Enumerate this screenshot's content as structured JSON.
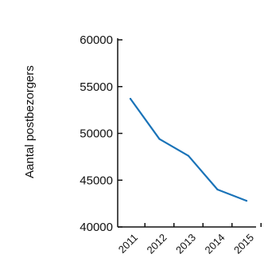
{
  "chart_data": {
    "type": "line",
    "title": "",
    "xlabel": "",
    "ylabel": "Aantal postbezorgers",
    "categories": [
      "2011",
      "2012",
      "2013",
      "2014",
      "2015"
    ],
    "series": [
      {
        "values": [
          53700,
          49400,
          47600,
          44000,
          42800
        ],
        "color": "#1a73b8"
      }
    ],
    "ylim": [
      40000,
      60000
    ],
    "yticks": [
      40000,
      45000,
      50000,
      55000,
      60000
    ],
    "ytick_labels": [
      "40000",
      "45000",
      "50000",
      "55000",
      "60000"
    ],
    "grid": false,
    "legend": "none"
  }
}
